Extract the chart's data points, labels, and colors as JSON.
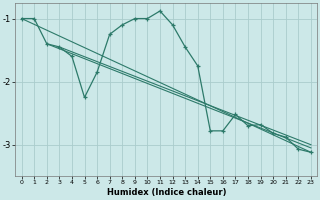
{
  "xlabel": "Humidex (Indice chaleur)",
  "bg_color": "#cce8e8",
  "grid_color": "#aacccc",
  "line_color": "#2d7a6a",
  "main_x": [
    0,
    1,
    2,
    3,
    4,
    5,
    6,
    7,
    8,
    9,
    10,
    11,
    12,
    13,
    14,
    15,
    16,
    17,
    18,
    19,
    20,
    21,
    22,
    23
  ],
  "main_y": [
    -1.0,
    -1.0,
    -1.4,
    -1.45,
    -1.6,
    -2.25,
    -1.85,
    -1.25,
    -1.1,
    -1.0,
    -1.0,
    -0.88,
    -1.1,
    -1.45,
    -1.75,
    -2.78,
    -2.78,
    -2.52,
    -2.7,
    -2.68,
    -2.82,
    -2.88,
    -3.07,
    -3.12
  ],
  "reg_lines": [
    [
      [
        0,
        -1.0
      ],
      [
        23,
        -3.12
      ]
    ],
    [
      [
        2,
        -1.4
      ],
      [
        23,
        -3.05
      ]
    ],
    [
      [
        3,
        -1.45
      ],
      [
        23,
        -3.0
      ]
    ]
  ],
  "ylim": [
    -3.5,
    -0.75
  ],
  "xlim": [
    -0.5,
    23.5
  ],
  "yticks": [
    -3,
    -2,
    -1
  ],
  "xticks": [
    0,
    1,
    2,
    3,
    4,
    5,
    6,
    7,
    8,
    9,
    10,
    11,
    12,
    13,
    14,
    15,
    16,
    17,
    18,
    19,
    20,
    21,
    22,
    23
  ]
}
